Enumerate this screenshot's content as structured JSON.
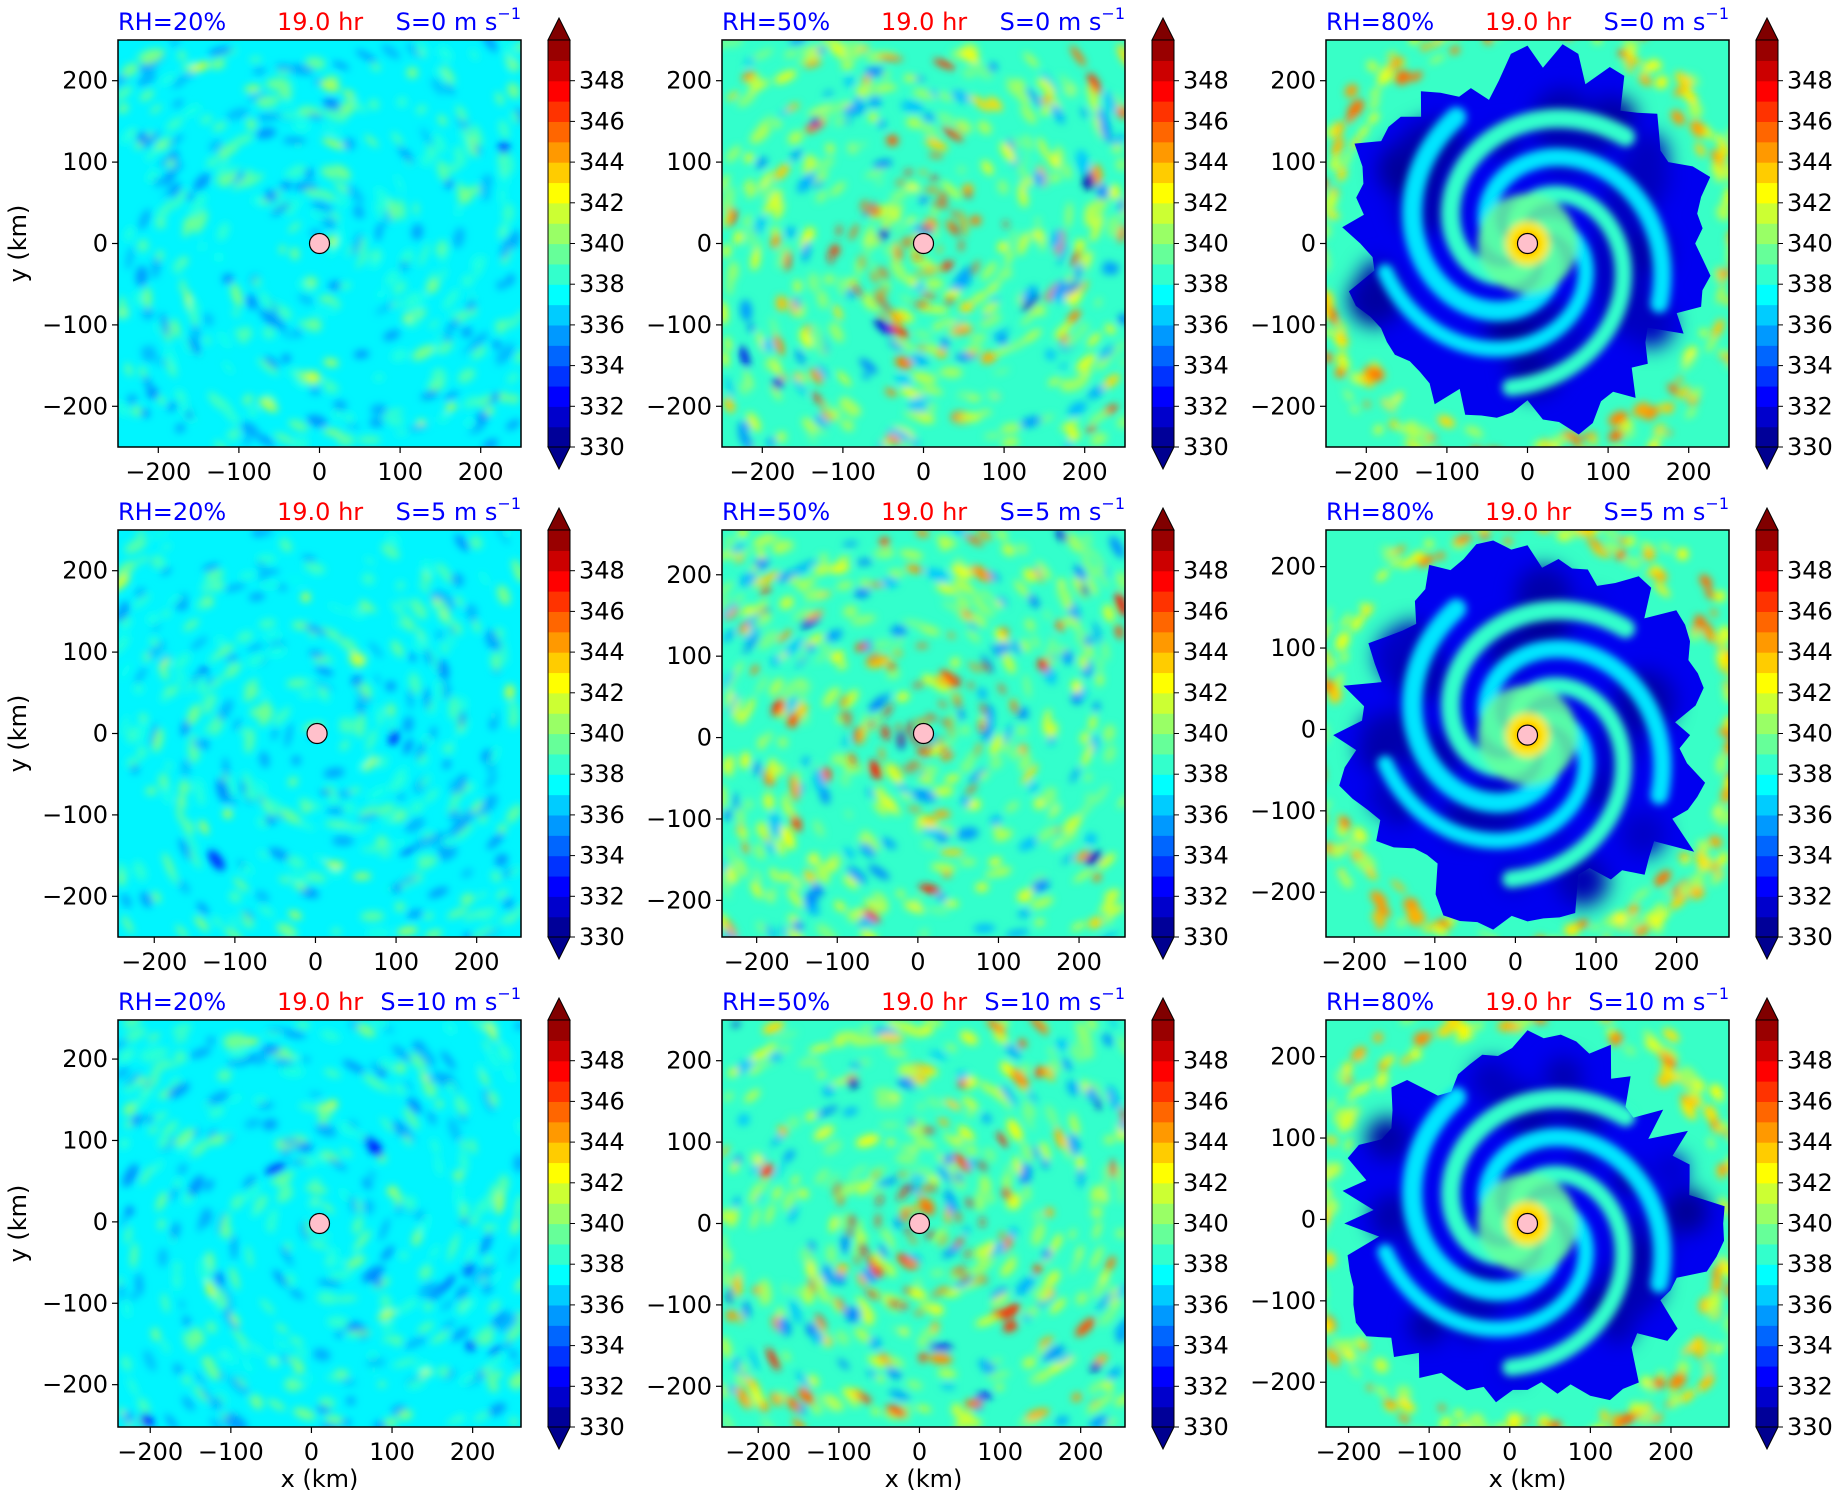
{
  "figure": {
    "colorbar_ticks": [
      "330",
      "332",
      "334",
      "336",
      "338",
      "340",
      "342",
      "344",
      "346",
      "348"
    ],
    "colors": {
      "rh_label": "#0000ff",
      "time_label": "#ff0000",
      "shear_label": "#0000ff",
      "center_marker": "#ffc0cb"
    },
    "rows": [
      {
        "shear_text": "S=0 m s",
        "shear_exp": "−1",
        "panels": [
          {
            "rh": "RH=20%",
            "time": "19.0 hr",
            "x_ticks": [
              "−200",
              "−100",
              "0",
              "100",
              "200"
            ],
            "y_ticks": [
              "200",
              "100",
              "0",
              "−100",
              "−200"
            ]
          },
          {
            "rh": "RH=50%",
            "time": "19.0 hr",
            "x_ticks": [
              "−200",
              "−100",
              "0",
              "100",
              "200"
            ],
            "y_ticks": [
              "200",
              "100",
              "0",
              "−100",
              "−200"
            ]
          },
          {
            "rh": "RH=80%",
            "time": "19.0 hr",
            "x_ticks": [
              "−200",
              "−100",
              "0",
              "100",
              "200"
            ],
            "y_ticks": [
              "200",
              "100",
              "0",
              "−100",
              "−200"
            ]
          }
        ]
      },
      {
        "shear_text": "S=5 m s",
        "shear_exp": "−1",
        "panels": [
          {
            "rh": "RH=20%",
            "time": "19.0 hr",
            "x_ticks": [
              "−200",
              "−100",
              "0",
              "100",
              "200"
            ],
            "y_ticks": [
              "200",
              "100",
              "0",
              "−100",
              "−200"
            ]
          },
          {
            "rh": "RH=50%",
            "time": "19.0 hr",
            "x_ticks": [
              "−200",
              "−100",
              "0",
              "100",
              "200"
            ],
            "y_ticks": [
              "200",
              "100",
              "0",
              "−100",
              "−200"
            ]
          },
          {
            "rh": "RH=80%",
            "time": "19.0 hr",
            "x_ticks": [
              "−200",
              "−100",
              "0",
              "100",
              "200"
            ],
            "y_ticks": [
              "200",
              "100",
              "0",
              "−100",
              "−200"
            ]
          }
        ]
      },
      {
        "shear_text": "S=10 m s",
        "shear_exp": "−1",
        "panels": [
          {
            "rh": "RH=20%",
            "time": "19.0 hr",
            "x_ticks": [
              "−200",
              "−100",
              "0",
              "100",
              "200"
            ],
            "y_ticks": [
              "200",
              "100",
              "0",
              "−100",
              "−200"
            ]
          },
          {
            "rh": "RH=50%",
            "time": "19.0 hr",
            "x_ticks": [
              "−200",
              "−100",
              "0",
              "100",
              "200"
            ],
            "y_ticks": [
              "200",
              "100",
              "0",
              "−100",
              "−200"
            ]
          },
          {
            "rh": "RH=80%",
            "time": "19.0 hr",
            "x_ticks": [
              "−200",
              "−100",
              "0",
              "100",
              "200"
            ],
            "y_ticks": [
              "200",
              "100",
              "0",
              "−100",
              "−200"
            ]
          }
        ]
      }
    ],
    "ylabel": "y (km)",
    "xlabel": "x (km)"
  },
  "chart_data": [
    {
      "type": "heatmap",
      "row": 1,
      "col": 1,
      "rh_percent": 20,
      "shear_m_s": 0,
      "time_hr": 19.0,
      "xlabel": "",
      "ylabel": "y (km)",
      "xlim": [
        -250,
        250
      ],
      "ylim": [
        -250,
        250
      ],
      "center_km": [
        0,
        0
      ],
      "clim": [
        330,
        350
      ],
      "pattern": "uniform"
    },
    {
      "type": "heatmap",
      "row": 1,
      "col": 2,
      "rh_percent": 50,
      "shear_m_s": 0,
      "time_hr": 19.0,
      "xlabel": "",
      "ylabel": "",
      "xlim": [
        -250,
        250
      ],
      "ylim": [
        -250,
        250
      ],
      "center_km": [
        0,
        0
      ],
      "clim": [
        330,
        350
      ],
      "pattern": "moist"
    },
    {
      "type": "heatmap",
      "row": 1,
      "col": 3,
      "rh_percent": 80,
      "shear_m_s": 0,
      "time_hr": 19.0,
      "xlabel": "",
      "ylabel": "",
      "xlim": [
        -250,
        250
      ],
      "ylim": [
        -250,
        250
      ],
      "center_km": [
        0,
        0
      ],
      "clim": [
        330,
        350
      ],
      "pattern": "ring"
    },
    {
      "type": "heatmap",
      "row": 2,
      "col": 1,
      "rh_percent": 20,
      "shear_m_s": 5,
      "time_hr": 19.0,
      "xlabel": "",
      "ylabel": "y (km)",
      "xlim": [
        -245,
        255
      ],
      "ylim": [
        -250,
        250
      ],
      "center_km": [
        2,
        0
      ],
      "clim": [
        330,
        350
      ],
      "pattern": "uniform"
    },
    {
      "type": "heatmap",
      "row": 2,
      "col": 2,
      "rh_percent": 50,
      "shear_m_s": 5,
      "time_hr": 19.0,
      "xlabel": "",
      "ylabel": "",
      "xlim": [
        -243,
        257
      ],
      "ylim": [
        -245,
        255
      ],
      "center_km": [
        7,
        5
      ],
      "clim": [
        330,
        350
      ],
      "pattern": "moist"
    },
    {
      "type": "heatmap",
      "row": 2,
      "col": 3,
      "rh_percent": 80,
      "shear_m_s": 5,
      "time_hr": 19.0,
      "xlabel": "",
      "ylabel": "",
      "xlim": [
        -235,
        265
      ],
      "ylim": [
        -255,
        245
      ],
      "center_km": [
        15,
        -7
      ],
      "clim": [
        330,
        350
      ],
      "pattern": "ring"
    },
    {
      "type": "heatmap",
      "row": 3,
      "col": 1,
      "rh_percent": 20,
      "shear_m_s": 10,
      "time_hr": 19.0,
      "xlabel": "",
      "ylabel": "y (km)",
      "xlim": [
        -240,
        260
      ],
      "ylim": [
        -252,
        248
      ],
      "center_km": [
        10,
        -2
      ],
      "clim": [
        330,
        350
      ],
      "pattern": "uniform"
    },
    {
      "type": "heatmap",
      "row": 3,
      "col": 2,
      "rh_percent": 50,
      "shear_m_s": 10,
      "time_hr": 19.0,
      "xlabel": "",
      "ylabel": "",
      "xlim": [
        -245,
        255
      ],
      "ylim": [
        -250,
        250
      ],
      "center_km": [
        0,
        0
      ],
      "clim": [
        330,
        350
      ],
      "pattern": "moist"
    },
    {
      "type": "heatmap",
      "row": 3,
      "col": 3,
      "rh_percent": 80,
      "shear_m_s": 10,
      "time_hr": 19.0,
      "xlabel": "",
      "ylabel": "",
      "xlim": [
        -228,
        272
      ],
      "ylim": [
        -255,
        245
      ],
      "center_km": [
        22,
        -5
      ],
      "clim": [
        330,
        350
      ],
      "pattern": "ring"
    }
  ]
}
